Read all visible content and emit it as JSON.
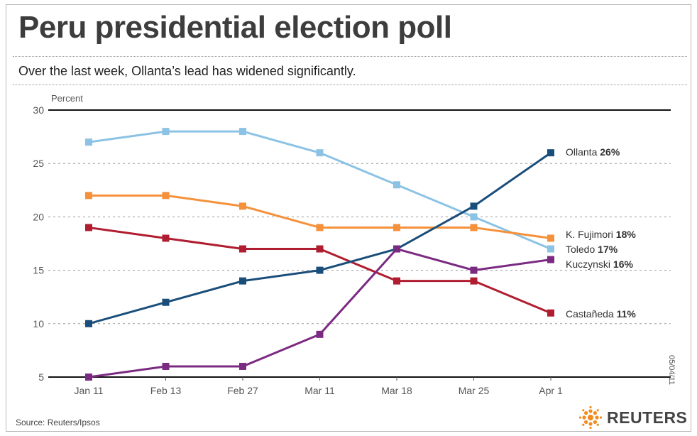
{
  "title": "Peru presidential election poll",
  "subtitle": "Over the last week, Ollanta’s lead has widened significantly.",
  "source": "Source: Reuters/Ipsos",
  "credit": "05/04/11",
  "logo_text": "REUTERS",
  "chart_data": {
    "type": "line",
    "ylabel": "Percent",
    "xlabel": "",
    "ylim": [
      5,
      30
    ],
    "yticks": [
      "30",
      "25",
      "20",
      "15",
      "10",
      "5"
    ],
    "categories": [
      "Jan 11",
      "Feb 13",
      "Feb 27",
      "Mar 11",
      "Mar 18",
      "Mar 25",
      "Apr 1"
    ],
    "grid": true,
    "series": [
      {
        "name": "Toledo",
        "value_label": "17%",
        "color": "#8cc3e4",
        "values": [
          27,
          28,
          28,
          26,
          23,
          20,
          17
        ]
      },
      {
        "name": "K. Fujimori",
        "value_label": "18%",
        "color": "#f5913a",
        "values": [
          22,
          22,
          21,
          19,
          19,
          19,
          18
        ]
      },
      {
        "name": "Castañeda",
        "value_label": "11%",
        "color": "#b01d30",
        "values": [
          19,
          18,
          17,
          17,
          14,
          14,
          11
        ]
      },
      {
        "name": "Ollanta",
        "value_label": "26%",
        "color": "#1a4e7a",
        "values": [
          10,
          12,
          14,
          15,
          17,
          21,
          26
        ]
      },
      {
        "name": "Kuczynski",
        "value_label": "16%",
        "color": "#7b2a82",
        "values": [
          5,
          6,
          6,
          9,
          17,
          15,
          16
        ]
      }
    ]
  }
}
